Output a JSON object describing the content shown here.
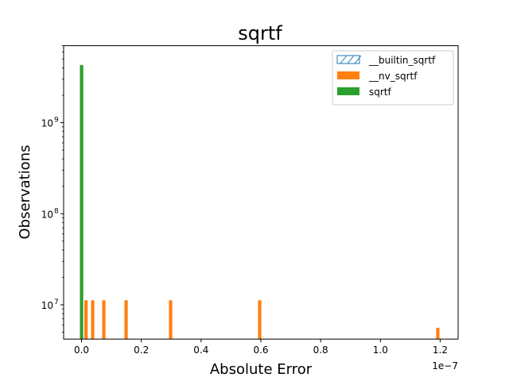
{
  "chart_data": {
    "type": "bar",
    "title": "sqrtf",
    "xlabel": "Absolute Error",
    "ylabel": "Observations",
    "x_offset_label": "1e−7",
    "xlim": [
      -0.06,
      1.26
    ],
    "x_scale_exponent": -7,
    "x_ticks": [
      0.0,
      0.2,
      0.4,
      0.6,
      0.8,
      1.0,
      1.2
    ],
    "x_tick_labels": [
      "0.0",
      "0.2",
      "0.4",
      "0.6",
      "0.8",
      "1.0",
      "1.2"
    ],
    "yscale": "log",
    "ylim": [
      4200000.0,
      7000000000.0
    ],
    "y_ticks": [
      10000000.0,
      100000000.0,
      1000000000.0
    ],
    "y_tick_labels": [
      "10",
      "10",
      "10"
    ],
    "y_tick_exponents": [
      "7",
      "8",
      "9"
    ],
    "bar_width": 0.011,
    "grid": false,
    "legend_position": "top-right",
    "series": [
      {
        "name": "__builtin_sqrtf",
        "color": "#1f77b4",
        "style": "hatched-outline",
        "x": [],
        "values": []
      },
      {
        "name": "__nv_sqrtf",
        "color": "#ff7f0e",
        "style": "filled",
        "x": [
          0.0,
          0.0149,
          0.0373,
          0.0745,
          0.149,
          0.298,
          0.596,
          1.192
        ],
        "values": [
          4300000000.0,
          11200000.0,
          11200000.0,
          11200000.0,
          11200000.0,
          11200000.0,
          11200000.0,
          5600000.0
        ]
      },
      {
        "name": "sqrtf",
        "color": "#2ca02c",
        "style": "filled",
        "x": [
          0.0
        ],
        "values": [
          4300000000.0
        ]
      }
    ]
  }
}
